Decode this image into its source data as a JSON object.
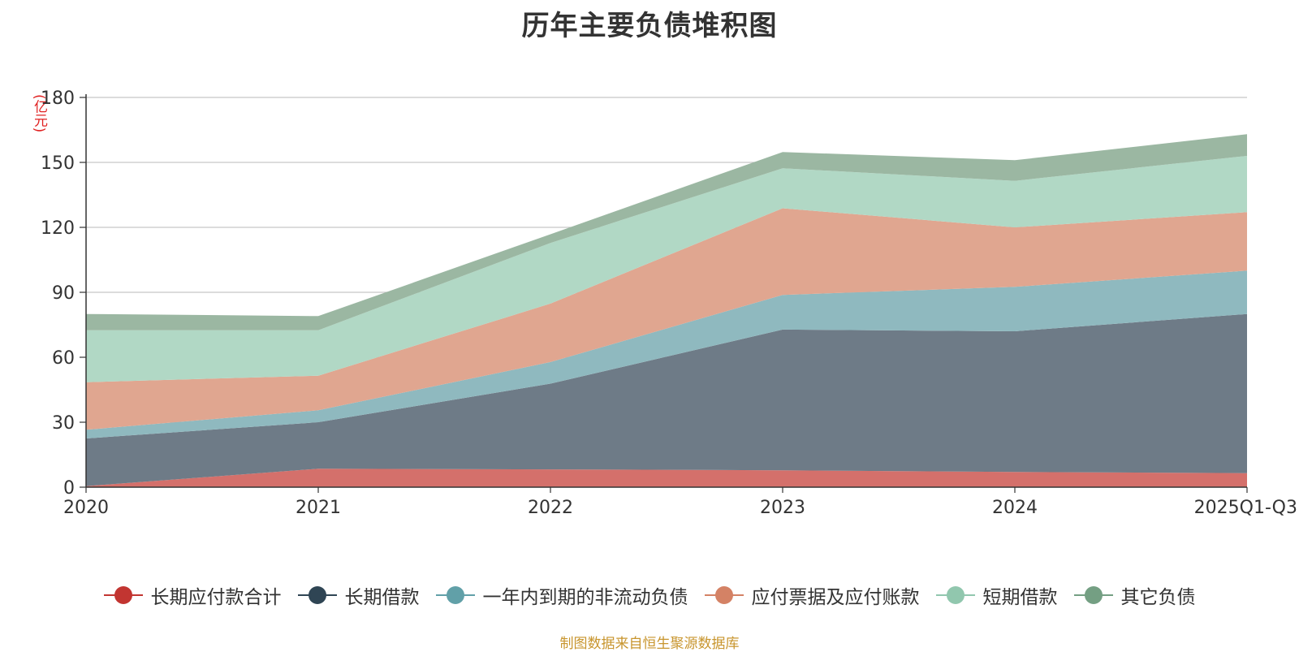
{
  "source_note": "制图数据来自恒生聚源数据库",
  "chart_data": {
    "type": "area",
    "stacked": true,
    "title": "历年主要负债堆积图",
    "unit": "(亿元)",
    "categories": [
      "2020",
      "2021",
      "2022",
      "2023",
      "2024",
      "2025Q1-Q3"
    ],
    "y_ticks": [
      "0",
      "30",
      "60",
      "90",
      "120",
      "150",
      "180"
    ],
    "ylim": [
      0,
      180
    ],
    "grid": true,
    "legend_position": "bottom",
    "series": [
      {
        "name": "长期应付款合计",
        "values": [
          0.5,
          8.5,
          8.2,
          7.8,
          7.0,
          6.5
        ],
        "fill": "#d4706b",
        "marker": "#c23531"
      },
      {
        "name": "长期借款",
        "values": [
          22,
          21.5,
          39.6,
          65,
          65,
          73.5
        ],
        "fill": "#6e7b87",
        "marker": "#2f4554"
      },
      {
        "name": "一年内到期的非流动负债",
        "values": [
          4,
          5.5,
          10,
          16,
          20.5,
          20
        ],
        "fill": "#8fb9bf",
        "marker": "#61a0a8"
      },
      {
        "name": "应付票据及应付账款",
        "values": [
          22,
          16,
          27,
          40,
          27.5,
          27
        ],
        "fill": "#e0a690",
        "marker": "#d48265"
      },
      {
        "name": "短期借款",
        "values": [
          24,
          21,
          28,
          18.5,
          21.5,
          26
        ],
        "fill": "#b1d8c5",
        "marker": "#91c7ae"
      },
      {
        "name": "其它负债",
        "values": [
          7.5,
          6.5,
          4,
          7.5,
          9.5,
          10
        ],
        "fill": "#9bb7a2",
        "marker": "#749f83"
      }
    ]
  }
}
